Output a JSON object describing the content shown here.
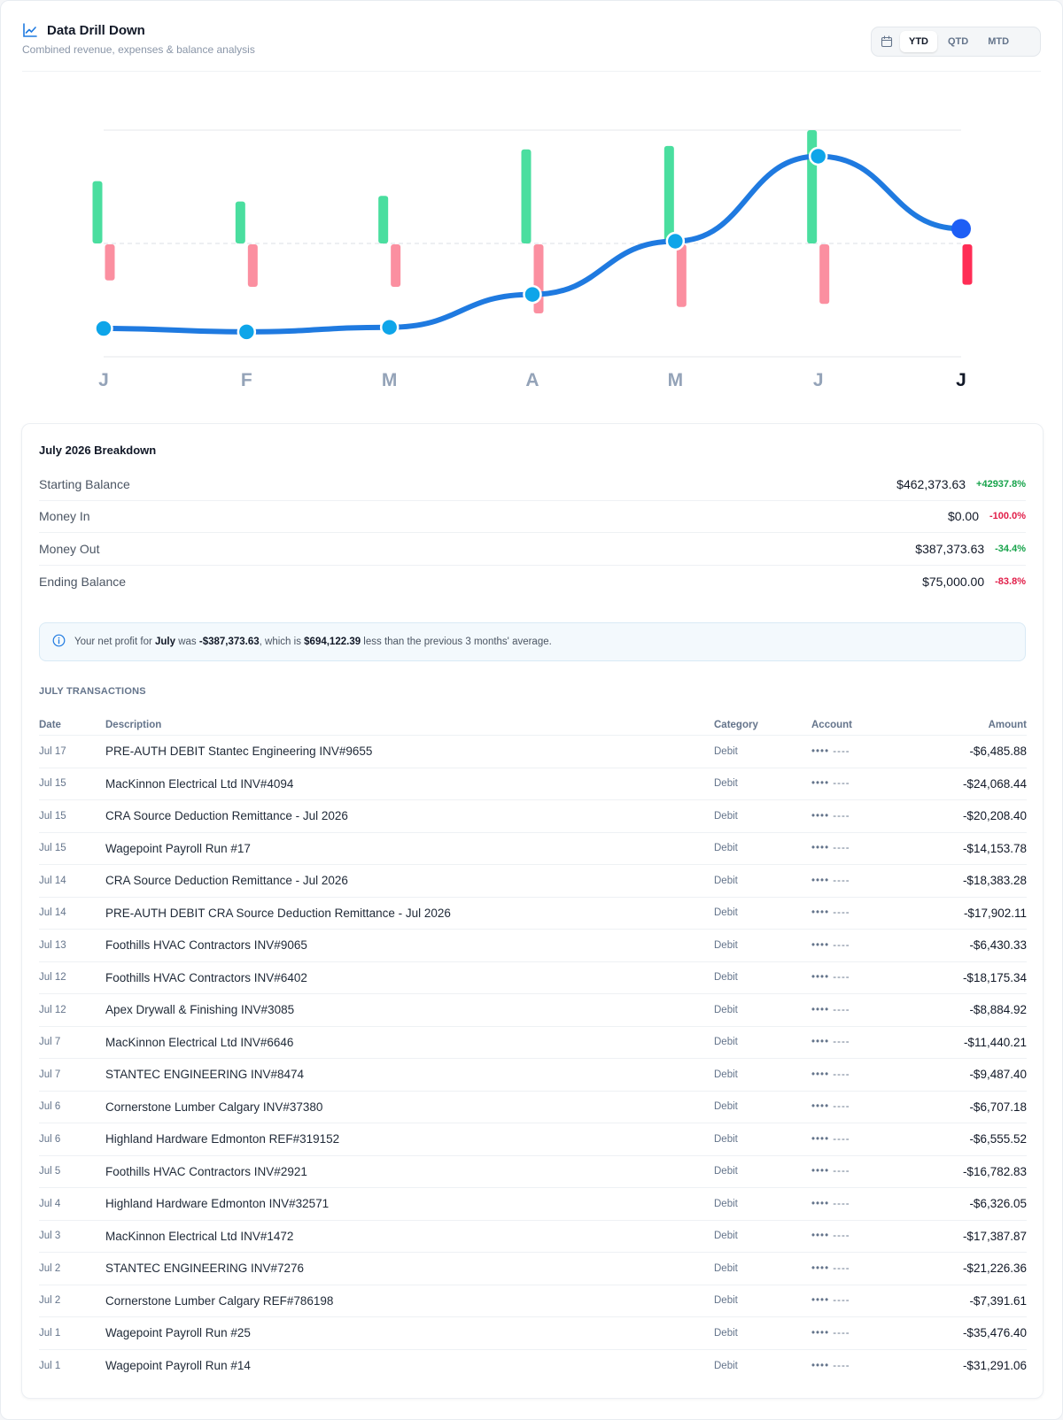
{
  "header": {
    "title": "Data Drill Down",
    "subtitle": "Combined revenue, expenses & balance analysis",
    "range_tabs": [
      {
        "label": "YTD",
        "active": true
      },
      {
        "label": "QTD",
        "active": false
      },
      {
        "label": "MTD",
        "active": false
      }
    ]
  },
  "colors": {
    "income": "#4ade9f",
    "expense": "#fb8fa0",
    "expense_current": "#ff2d55",
    "balance_line": "#1f7ae0",
    "balance_point": "#0ea5e9",
    "balance_point_current": "#1d5ef5"
  },
  "chart_data": {
    "type": "bar",
    "categories": [
      "J",
      "F",
      "M",
      "A",
      "M",
      "J",
      "J"
    ],
    "selected_index": 6,
    "series": [
      {
        "values": [
          0.55,
          0.37,
          0.42,
          0.83,
          0.86,
          1.0,
          0.0
        ]
      },
      {
        "values": [
          0.34,
          0.4,
          0.4,
          0.65,
          0.59,
          0.56,
          0.38
        ]
      },
      {
        "values": [
          -0.75,
          -0.78,
          -0.74,
          -0.45,
          0.02,
          0.77,
          0.13
        ]
      }
    ]
  },
  "breakdown": {
    "title": "July 2026 Breakdown",
    "rows": [
      {
        "label": "Starting Balance",
        "value": "$462,373.63",
        "change": "+42937.8%",
        "tone": "pos"
      },
      {
        "label": "Money In",
        "value": "$0.00",
        "change": "-100.0%",
        "tone": "neg"
      },
      {
        "label": "Money Out",
        "value": "$387,373.63",
        "change": "-34.4%",
        "tone": "pos"
      },
      {
        "label": "Ending Balance",
        "value": "$75,000.00",
        "change": "-83.8%",
        "tone": "neg"
      }
    ],
    "note": {
      "prefix": "Your net profit for ",
      "month": "July",
      "mid1": " was ",
      "profit": "-$387,373.63",
      "mid2": ", which is ",
      "diff": "$694,122.39",
      "suffix": " less than the previous 3 months' average."
    }
  },
  "transactions": {
    "heading": "JULY TRANSACTIONS",
    "columns": {
      "date": "Date",
      "description": "Description",
      "category": "Category",
      "account": "Account",
      "amount": "Amount"
    },
    "rows": [
      {
        "date": "Jul 17",
        "description": "PRE-AUTH DEBIT Stantec Engineering INV#9655",
        "category": "Debit",
        "account": "•••• ----",
        "amount": "-$6,485.88"
      },
      {
        "date": "Jul 15",
        "description": "MacKinnon Electrical Ltd INV#4094",
        "category": "Debit",
        "account": "•••• ----",
        "amount": "-$24,068.44"
      },
      {
        "date": "Jul 15",
        "description": "CRA Source Deduction Remittance - Jul 2026",
        "category": "Debit",
        "account": "•••• ----",
        "amount": "-$20,208.40"
      },
      {
        "date": "Jul 15",
        "description": "Wagepoint Payroll Run #17",
        "category": "Debit",
        "account": "•••• ----",
        "amount": "-$14,153.78"
      },
      {
        "date": "Jul 14",
        "description": "CRA Source Deduction Remittance - Jul 2026",
        "category": "Debit",
        "account": "•••• ----",
        "amount": "-$18,383.28"
      },
      {
        "date": "Jul 14",
        "description": "PRE-AUTH DEBIT CRA Source Deduction Remittance - Jul 2026",
        "category": "Debit",
        "account": "•••• ----",
        "amount": "-$17,902.11"
      },
      {
        "date": "Jul 13",
        "description": "Foothills HVAC Contractors INV#9065",
        "category": "Debit",
        "account": "•••• ----",
        "amount": "-$6,430.33"
      },
      {
        "date": "Jul 12",
        "description": "Foothills HVAC Contractors INV#6402",
        "category": "Debit",
        "account": "•••• ----",
        "amount": "-$18,175.34"
      },
      {
        "date": "Jul 12",
        "description": "Apex Drywall & Finishing INV#3085",
        "category": "Debit",
        "account": "•••• ----",
        "amount": "-$8,884.92"
      },
      {
        "date": "Jul 7",
        "description": "MacKinnon Electrical Ltd INV#6646",
        "category": "Debit",
        "account": "•••• ----",
        "amount": "-$11,440.21"
      },
      {
        "date": "Jul 7",
        "description": "STANTEC ENGINEERING INV#8474",
        "category": "Debit",
        "account": "•••• ----",
        "amount": "-$9,487.40"
      },
      {
        "date": "Jul 6",
        "description": "Cornerstone Lumber Calgary INV#37380",
        "category": "Debit",
        "account": "•••• ----",
        "amount": "-$6,707.18"
      },
      {
        "date": "Jul 6",
        "description": "Highland Hardware Edmonton REF#319152",
        "category": "Debit",
        "account": "•••• ----",
        "amount": "-$6,555.52"
      },
      {
        "date": "Jul 5",
        "description": "Foothills HVAC Contractors INV#2921",
        "category": "Debit",
        "account": "•••• ----",
        "amount": "-$16,782.83"
      },
      {
        "date": "Jul 4",
        "description": "Highland Hardware Edmonton INV#32571",
        "category": "Debit",
        "account": "•••• ----",
        "amount": "-$6,326.05"
      },
      {
        "date": "Jul 3",
        "description": "MacKinnon Electrical Ltd INV#1472",
        "category": "Debit",
        "account": "•••• ----",
        "amount": "-$17,387.87"
      },
      {
        "date": "Jul 2",
        "description": "STANTEC ENGINEERING INV#7276",
        "category": "Debit",
        "account": "•••• ----",
        "amount": "-$21,226.36"
      },
      {
        "date": "Jul 2",
        "description": "Cornerstone Lumber Calgary REF#786198",
        "category": "Debit",
        "account": "•••• ----",
        "amount": "-$7,391.61"
      },
      {
        "date": "Jul 1",
        "description": "Wagepoint Payroll Run #25",
        "category": "Debit",
        "account": "•••• ----",
        "amount": "-$35,476.40"
      },
      {
        "date": "Jul 1",
        "description": "Wagepoint Payroll Run #14",
        "category": "Debit",
        "account": "•••• ----",
        "amount": "-$31,291.06"
      }
    ]
  }
}
